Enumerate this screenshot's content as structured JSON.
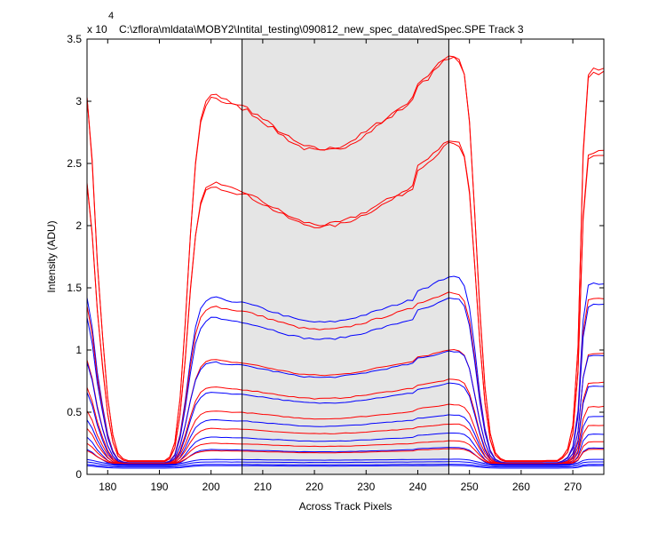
{
  "chart_data": {
    "type": "line",
    "title": "C:\\zflora\\mldata\\MOBY2\\Intital_testing\\090812_new_spec_data\\redSpec.SPE   Track 3",
    "xlabel": "Across Track Pixels",
    "ylabel": "Intensity (ADU)",
    "y_exponent_label": "x 10",
    "y_exponent": "4",
    "xlim": [
      176,
      276
    ],
    "ylim": [
      0,
      35000
    ],
    "xticks": [
      180,
      190,
      200,
      210,
      220,
      230,
      240,
      250,
      260,
      270
    ],
    "yticks": [
      0,
      5000,
      10000,
      15000,
      20000,
      25000,
      30000,
      35000
    ],
    "ytick_labels": [
      "0",
      "0.5",
      "1",
      "1.5",
      "2",
      "2.5",
      "3",
      "3.5"
    ],
    "shaded_region": {
      "x": [
        206,
        246
      ]
    },
    "grid": false,
    "colors": {
      "red": "#ff0000",
      "blue": "#0000ff",
      "shade": "#e5e5e5",
      "axis": "#000000"
    },
    "profile_shape_x": [
      176,
      177,
      178,
      179,
      180,
      181,
      182,
      183,
      184,
      185,
      186,
      187,
      188,
      189,
      190,
      191,
      192,
      193,
      194,
      195,
      196,
      197,
      198,
      199,
      200,
      201,
      202,
      203,
      204,
      205,
      206,
      207,
      208,
      209,
      210,
      211,
      212,
      213,
      214,
      215,
      216,
      217,
      218,
      219,
      220,
      221,
      222,
      223,
      224,
      225,
      226,
      227,
      228,
      229,
      230,
      231,
      232,
      233,
      234,
      235,
      236,
      237,
      238,
      239,
      240,
      241,
      242,
      243,
      244,
      245,
      246,
      247,
      248,
      249,
      250,
      251,
      252,
      253,
      254,
      255,
      256,
      257,
      258,
      259,
      260,
      261,
      262,
      263,
      264,
      265,
      266,
      267,
      268,
      269,
      270,
      271,
      272,
      273,
      274,
      275,
      276
    ],
    "profile_shape": [
      1.0,
      0.82,
      0.55,
      0.35,
      0.18,
      0.08,
      0.03,
      0.015,
      0.01,
      0.01,
      0.01,
      0.01,
      0.01,
      0.01,
      0.01,
      0.01,
      0.02,
      0.06,
      0.18,
      0.38,
      0.62,
      0.82,
      0.93,
      0.98,
      1.0,
      1.0,
      0.99,
      0.985,
      0.98,
      0.975,
      0.97,
      0.965,
      0.955,
      0.945,
      0.935,
      0.925,
      0.915,
      0.905,
      0.895,
      0.885,
      0.875,
      0.868,
      0.862,
      0.858,
      0.855,
      0.853,
      0.853,
      0.855,
      0.858,
      0.862,
      0.868,
      0.875,
      0.883,
      0.892,
      0.9,
      0.91,
      0.92,
      0.93,
      0.94,
      0.95,
      0.96,
      0.97,
      0.98,
      0.99,
      1.0,
      1.005,
      1.01,
      1.02,
      1.03,
      1.04,
      1.05,
      1.045,
      1.04,
      1.0,
      0.88,
      0.65,
      0.4,
      0.2,
      0.08,
      0.03,
      0.015,
      0.01,
      0.01,
      0.01,
      0.01,
      0.01,
      0.01,
      0.01,
      0.01,
      0.01,
      0.01,
      0.01,
      0.02,
      0.04,
      0.1,
      0.3,
      0.8,
      1.0,
      1.01,
      1.01,
      1.01
    ],
    "series": [
      {
        "color": "red",
        "baseline": 800,
        "peak": 30500,
        "right_peak": 32200
      },
      {
        "color": "red",
        "baseline": 800,
        "peak": 30300,
        "right_peak": 32000
      },
      {
        "color": "red",
        "baseline": 800,
        "peak": 23400,
        "right_peak": 25700
      },
      {
        "color": "red",
        "baseline": 800,
        "peak": 23200,
        "right_peak": 25400
      },
      {
        "color": "blue",
        "baseline": 800,
        "peak": 14200,
        "right_peak": 15200
      },
      {
        "color": "red",
        "baseline": 800,
        "peak": 13500,
        "right_peak": 14000
      },
      {
        "color": "blue",
        "baseline": 800,
        "peak": 12600,
        "right_peak": 13500
      },
      {
        "color": "red",
        "baseline": 800,
        "peak": 9200,
        "right_peak": 9600
      },
      {
        "color": "blue",
        "baseline": 800,
        "peak": 9000,
        "right_peak": 9500
      },
      {
        "color": "red",
        "baseline": 800,
        "peak": 7000,
        "right_peak": 7300
      },
      {
        "color": "blue",
        "baseline": 700,
        "peak": 6600,
        "right_peak": 7000
      },
      {
        "color": "red",
        "baseline": 800,
        "peak": 5100,
        "right_peak": 5400
      },
      {
        "color": "blue",
        "baseline": 700,
        "peak": 4400,
        "right_peak": 4600
      },
      {
        "color": "red",
        "baseline": 800,
        "peak": 3700,
        "right_peak": 3900
      },
      {
        "color": "blue",
        "baseline": 700,
        "peak": 3000,
        "right_peak": 3200
      },
      {
        "color": "red",
        "baseline": 800,
        "peak": 2500,
        "right_peak": 2600
      },
      {
        "color": "blue",
        "baseline": 700,
        "peak": 2000,
        "right_peak": 2100
      },
      {
        "color": "red",
        "baseline": 800,
        "peak": 1900,
        "right_peak": 2000
      },
      {
        "color": "blue",
        "baseline": 800,
        "peak": 1200,
        "right_peak": 1200
      },
      {
        "color": "blue",
        "baseline": 700,
        "peak": 1000,
        "right_peak": 1000
      },
      {
        "color": "blue",
        "baseline": 600,
        "peak": 800,
        "right_peak": 800
      },
      {
        "color": "blue",
        "baseline": 500,
        "peak": 700,
        "right_peak": 700
      }
    ]
  }
}
